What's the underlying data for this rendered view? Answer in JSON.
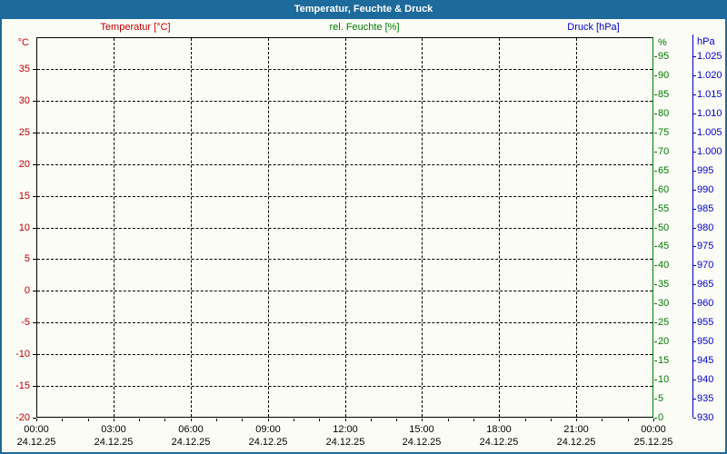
{
  "window": {
    "title": "Temperatur, Feuchte & Druck"
  },
  "colors": {
    "chrome": "#1d6a9c",
    "titlebar_text": "#ffffff",
    "background": "#fcfcf7",
    "temperature": "#c00000",
    "humidity": "#007b00",
    "pressure": "#0000cc",
    "grid": "#000000",
    "x_labels": "#000000"
  },
  "chart_data": {
    "type": "line",
    "title": "Temperatur, Feuchte & Druck",
    "grid": "dashed",
    "note_visible_data": "chart area is empty - no data curves are plotted for this day",
    "series": [
      {
        "name": "Temperatur [°C]",
        "axis": "temperature",
        "color": "#c00000",
        "x": [],
        "values": []
      },
      {
        "name": "rel. Feuchte [%]",
        "axis": "humidity",
        "color": "#007b00",
        "x": [],
        "values": []
      },
      {
        "name": "Druck [hPa]",
        "axis": "pressure",
        "color": "#0000cc",
        "x": [],
        "values": []
      }
    ],
    "axes": {
      "temperature": {
        "unit": "°C",
        "side": "left",
        "min": -20,
        "max": 40,
        "tick_step": 5,
        "tick_values": [
          35,
          30,
          25,
          20,
          15,
          10,
          5,
          0,
          -5,
          -10,
          -15,
          -20
        ],
        "tick_labels": [
          "35",
          "30",
          "25",
          "20",
          "15",
          "10",
          "5",
          "0",
          "-5",
          "-10",
          "-15",
          "-20"
        ]
      },
      "humidity": {
        "unit": "%",
        "side": "right",
        "min": 0,
        "max": 100,
        "tick_step": 5,
        "tick_values": [
          95,
          90,
          85,
          80,
          75,
          70,
          65,
          60,
          55,
          50,
          45,
          40,
          35,
          30,
          25,
          20,
          15,
          10,
          5,
          0
        ],
        "tick_labels": [
          "95",
          "90",
          "85",
          "80",
          "75",
          "70",
          "65",
          "60",
          "55",
          "50",
          "45",
          "40",
          "35",
          "30",
          "25",
          "20",
          "15",
          "10",
          "5",
          "0"
        ]
      },
      "pressure": {
        "unit": "hPa",
        "side": "right-outer",
        "min": 930,
        "max": 1030,
        "tick_step": 5,
        "tick_values": [
          1025,
          1020,
          1015,
          1010,
          1005,
          1000,
          995,
          990,
          985,
          980,
          975,
          970,
          965,
          960,
          955,
          950,
          945,
          940,
          935,
          930
        ],
        "tick_labels": [
          "1.025",
          "1.020",
          "1.015",
          "1.010",
          "1.005",
          "1.000",
          "995",
          "990",
          "985",
          "980",
          "975",
          "970",
          "965",
          "960",
          "955",
          "950",
          "945",
          "940",
          "935",
          "930"
        ]
      },
      "x": {
        "min_hours": 0,
        "max_hours": 24,
        "minor_tick_step_hours": 1,
        "gridline_step_hours": 3,
        "labels": [
          {
            "hour": 0,
            "time": "00:00",
            "date": "24.12.25"
          },
          {
            "hour": 3,
            "time": "03:00",
            "date": "24.12.25"
          },
          {
            "hour": 6,
            "time": "06:00",
            "date": "24.12.25"
          },
          {
            "hour": 9,
            "time": "09:00",
            "date": "24.12.25"
          },
          {
            "hour": 12,
            "time": "12:00",
            "date": "24.12.25"
          },
          {
            "hour": 15,
            "time": "15:00",
            "date": "24.12.25"
          },
          {
            "hour": 18,
            "time": "18:00",
            "date": "24.12.25"
          },
          {
            "hour": 21,
            "time": "21:00",
            "date": "24.12.25"
          },
          {
            "hour": 24,
            "time": "00:00",
            "date": "25.12.25"
          }
        ]
      }
    }
  }
}
